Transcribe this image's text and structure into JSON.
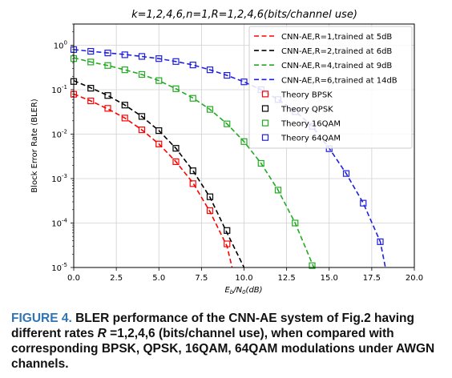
{
  "chart_data": {
    "type": "line",
    "title": "k=1,2,4,6,n=1,R=1,2,4,6(bits/channel use)",
    "xlabel": "Eb/N0(dB)",
    "xlabel_parts": {
      "main": "E",
      "sub1": "b",
      "mid": "/N",
      "sub2": "0",
      "tail": "(dB)"
    },
    "ylabel": "Block Error Rate (BLER)",
    "scale_y": "log",
    "xlim": [
      0,
      20
    ],
    "ylim": [
      1e-05,
      3
    ],
    "grid": true,
    "legend_position": "top-right",
    "x_ticks": [
      {
        "value": 0,
        "label": "0.0"
      },
      {
        "value": 2.5,
        "label": "2.5"
      },
      {
        "value": 5,
        "label": "5.0"
      },
      {
        "value": 7.5,
        "label": "7.5"
      },
      {
        "value": 10,
        "label": "10.0"
      },
      {
        "value": 12.5,
        "label": "12.5"
      },
      {
        "value": 15,
        "label": "15.0"
      },
      {
        "value": 17.5,
        "label": "17.5"
      },
      {
        "value": 20,
        "label": "20.0"
      }
    ],
    "y_ticks": [
      {
        "value": 1,
        "base": "10",
        "exp": "0"
      },
      {
        "value": 0.1,
        "base": "10",
        "exp": "-1"
      },
      {
        "value": 0.01,
        "base": "10",
        "exp": "-2"
      },
      {
        "value": 0.001,
        "base": "10",
        "exp": "-3"
      },
      {
        "value": 0.0001,
        "base": "10",
        "exp": "-4"
      },
      {
        "value": 1e-05,
        "base": "10",
        "exp": "-5"
      }
    ],
    "series": [
      {
        "name": "CNN-AE,R=1,trained at 5dB",
        "kind": "line",
        "color": "#ff0000",
        "x": [
          0,
          1,
          2,
          3,
          4,
          5,
          6,
          7,
          8,
          9,
          9.3
        ],
        "y": [
          0.08,
          0.056,
          0.037,
          0.023,
          0.0125,
          0.006,
          0.0024,
          0.0008,
          0.00018,
          3e-05,
          1e-05
        ]
      },
      {
        "name": "CNN-AE,R=2,trained at 6dB",
        "kind": "line",
        "color": "#000000",
        "x": [
          0,
          1,
          2,
          3,
          4,
          5,
          6,
          7,
          8,
          9,
          10
        ],
        "y": [
          0.16,
          0.11,
          0.074,
          0.045,
          0.025,
          0.012,
          0.0048,
          0.0015,
          0.00038,
          6e-05,
          1e-05
        ]
      },
      {
        "name": "CNN-AE,R=4,trained at 9dB",
        "kind": "line",
        "color": "#22aa22",
        "x": [
          0,
          1,
          2,
          3,
          4,
          5,
          6,
          7,
          8,
          9,
          10,
          11,
          12,
          13,
          14.1
        ],
        "y": [
          0.52,
          0.42,
          0.35,
          0.28,
          0.22,
          0.16,
          0.105,
          0.065,
          0.036,
          0.017,
          0.0068,
          0.0022,
          0.00055,
          0.0001,
          1e-05
        ]
      },
      {
        "name": "CNN-AE,R=6,trained at 14dB",
        "kind": "line",
        "color": "#1f1fe0",
        "x": [
          0,
          1,
          2,
          3,
          4,
          5,
          6,
          7,
          8,
          9,
          10,
          11,
          12,
          13,
          14,
          15,
          16,
          17,
          18,
          18.3
        ],
        "y": [
          0.8,
          0.73,
          0.67,
          0.62,
          0.56,
          0.5,
          0.43,
          0.36,
          0.28,
          0.21,
          0.15,
          0.1,
          0.06,
          0.033,
          0.015,
          0.0048,
          0.0013,
          0.00028,
          3.8e-05,
          1e-05
        ]
      },
      {
        "name": "Theory BPSK",
        "kind": "marker",
        "color": "#ff0000",
        "x": [
          0,
          1,
          2,
          3,
          4,
          5,
          6,
          7,
          8,
          9
        ],
        "y": [
          0.079,
          0.056,
          0.038,
          0.023,
          0.0125,
          0.006,
          0.0024,
          0.00077,
          0.00019,
          3.4e-05
        ]
      },
      {
        "name": "Theory QPSK",
        "kind": "marker",
        "color": "#000000",
        "x": [
          0,
          1,
          2,
          3,
          4,
          5,
          6,
          7,
          8,
          9
        ],
        "y": [
          0.153,
          0.108,
          0.074,
          0.045,
          0.025,
          0.012,
          0.0048,
          0.0015,
          0.00039,
          6.8e-05
        ]
      },
      {
        "name": "Theory 16QAM",
        "kind": "marker",
        "color": "#22aa22",
        "x": [
          0,
          1,
          2,
          3,
          4,
          5,
          6,
          7,
          8,
          9,
          10,
          11,
          12,
          13,
          14
        ],
        "y": [
          0.5,
          0.42,
          0.35,
          0.28,
          0.22,
          0.16,
          0.105,
          0.064,
          0.036,
          0.017,
          0.0068,
          0.0022,
          0.00055,
          0.0001,
          1.1e-05
        ]
      },
      {
        "name": "Theory 64QAM",
        "kind": "marker",
        "color": "#1f1fe0",
        "x": [
          0,
          1,
          2,
          3,
          4,
          5,
          6,
          7,
          8,
          9,
          10,
          11,
          12,
          13,
          14,
          15,
          16,
          17,
          18
        ],
        "y": [
          0.8,
          0.73,
          0.67,
          0.61,
          0.56,
          0.5,
          0.43,
          0.36,
          0.28,
          0.21,
          0.15,
          0.1,
          0.06,
          0.032,
          0.015,
          0.0047,
          0.0013,
          0.00028,
          3.8e-05
        ]
      }
    ]
  },
  "caption": {
    "label": "FIGURE 4.",
    "text1": " BLER performance of the CNN-AE system of Fig.2 having different rates ",
    "rate_symbol": "R",
    "text2": " =1,2,4,6 (bits/channel use), when compared with corresponding BPSK, QPSK, 16QAM, 64QAM modulations under AWGN channels."
  }
}
